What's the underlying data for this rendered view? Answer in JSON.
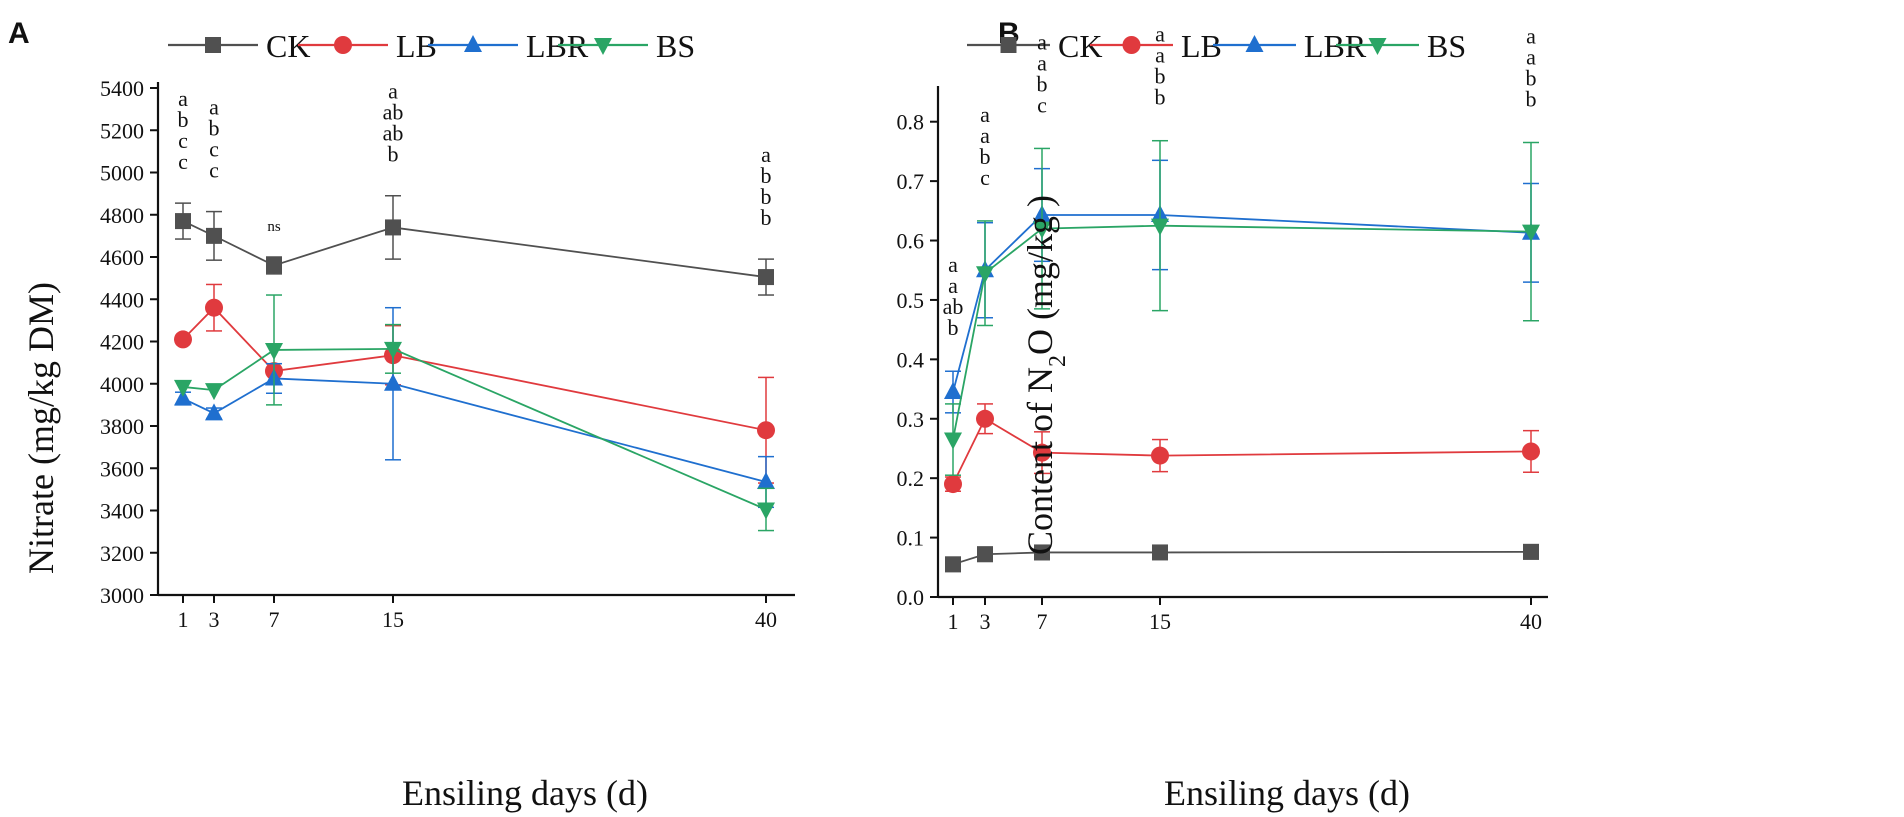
{
  "figure_labels": [
    "A",
    "B"
  ],
  "chart_data": [
    {
      "type": "line",
      "panel": "A",
      "xlabel": "Ensiling days (d)",
      "ylabel": "Nitrate (mg/kg DM)",
      "x": [
        1,
        3,
        7,
        15,
        40
      ],
      "xticks": [
        "1",
        "3",
        "7",
        "15",
        "40"
      ],
      "xlim": [
        0,
        42
      ],
      "ylim": [
        3000,
        5400
      ],
      "yticks": [
        "3000",
        "3200",
        "3400",
        "3600",
        "3800",
        "4000",
        "4200",
        "4400",
        "4600",
        "4800",
        "5000",
        "5200",
        "5400"
      ],
      "yticks_values": [
        3000,
        3200,
        3400,
        3600,
        3800,
        4000,
        4200,
        4400,
        4600,
        4800,
        5000,
        5200,
        5400
      ],
      "legend": "top",
      "series": [
        {
          "name": "CK",
          "color": "#505050",
          "marker": "square",
          "values": [
            4770,
            4700,
            4560,
            4740,
            4505
          ],
          "errors": [
            85,
            115,
            40,
            150,
            85
          ]
        },
        {
          "name": "LB",
          "color": "#e03a3e",
          "marker": "circle",
          "values": [
            4210,
            4360,
            4060,
            4135,
            3780
          ],
          "errors": [
            0,
            110,
            0,
            140,
            250
          ]
        },
        {
          "name": "LBR",
          "color": "#1f6fcf",
          "marker": "triangle-up",
          "values": [
            3930,
            3860,
            4025,
            4000,
            3535
          ],
          "errors": [
            30,
            25,
            70,
            360,
            120
          ]
        },
        {
          "name": "BS",
          "color": "#2aa565",
          "marker": "triangle-down",
          "values": [
            3985,
            3970,
            4160,
            4165,
            3405
          ],
          "errors": [
            0,
            0,
            260,
            115,
            100
          ]
        }
      ],
      "annotations": [
        {
          "x": 1,
          "letters": [
            "a",
            "b",
            "c",
            "c"
          ]
        },
        {
          "x": 3,
          "letters": [
            "a",
            "b",
            "c",
            "c"
          ]
        },
        {
          "x": 7,
          "letters": [
            "ns"
          ]
        },
        {
          "x": 15,
          "letters": [
            "a",
            "ab",
            "ab",
            "b"
          ]
        },
        {
          "x": 40,
          "letters": [
            "a",
            "b",
            "b",
            "b"
          ]
        }
      ]
    },
    {
      "type": "line",
      "panel": "B",
      "xlabel": "Ensiling days (d)",
      "ylabel_prefix": "Content of N",
      "ylabel_sub": "2",
      "ylabel_suffix": "O (mg/kg )",
      "x": [
        1,
        3,
        7,
        15,
        40
      ],
      "xticks": [
        "1",
        "3",
        "7",
        "15",
        "40"
      ],
      "xlim": [
        0,
        42
      ],
      "ylim": [
        0,
        0.85
      ],
      "yticks": [
        "0.0",
        "0.1",
        "0.2",
        "0.3",
        "0.4",
        "0.5",
        "0.6",
        "0.7",
        "0.8"
      ],
      "yticks_values": [
        0,
        0.1,
        0.2,
        0.3,
        0.4,
        0.5,
        0.6,
        0.7,
        0.8
      ],
      "legend": "top",
      "series": [
        {
          "name": "CK",
          "color": "#505050",
          "marker": "square",
          "values": [
            0.055,
            0.072,
            0.075,
            0.075,
            0.076
          ],
          "errors": [
            0.012,
            0.012,
            0.012,
            0.01,
            0.012
          ]
        },
        {
          "name": "LB",
          "color": "#e03a3e",
          "marker": "circle",
          "values": [
            0.19,
            0.3,
            0.243,
            0.238,
            0.245
          ],
          "errors": [
            0.012,
            0.025,
            0.035,
            0.027,
            0.035
          ]
        },
        {
          "name": "LBR",
          "color": "#1f6fcf",
          "marker": "triangle-up",
          "values": [
            0.345,
            0.55,
            0.643,
            0.643,
            0.613
          ],
          "errors": [
            0.035,
            0.08,
            0.078,
            0.092,
            0.083
          ]
        },
        {
          "name": "BS",
          "color": "#2aa565",
          "marker": "triangle-down",
          "values": [
            0.265,
            0.545,
            0.62,
            0.625,
            0.615
          ],
          "errors": [
            0.06,
            0.088,
            0.135,
            0.143,
            0.15
          ]
        }
      ],
      "annotations": [
        {
          "x": 1,
          "letters": [
            "a",
            "a",
            "ab",
            "b"
          ]
        },
        {
          "x": 3,
          "letters": [
            "a",
            "a",
            "b",
            "c"
          ]
        },
        {
          "x": 7,
          "letters": [
            "a",
            "a",
            "b",
            "c"
          ]
        },
        {
          "x": 15,
          "letters": [
            "a",
            "a",
            "b",
            "b"
          ]
        },
        {
          "x": 40,
          "letters": [
            "a",
            "a",
            "b",
            "b"
          ]
        }
      ]
    }
  ]
}
